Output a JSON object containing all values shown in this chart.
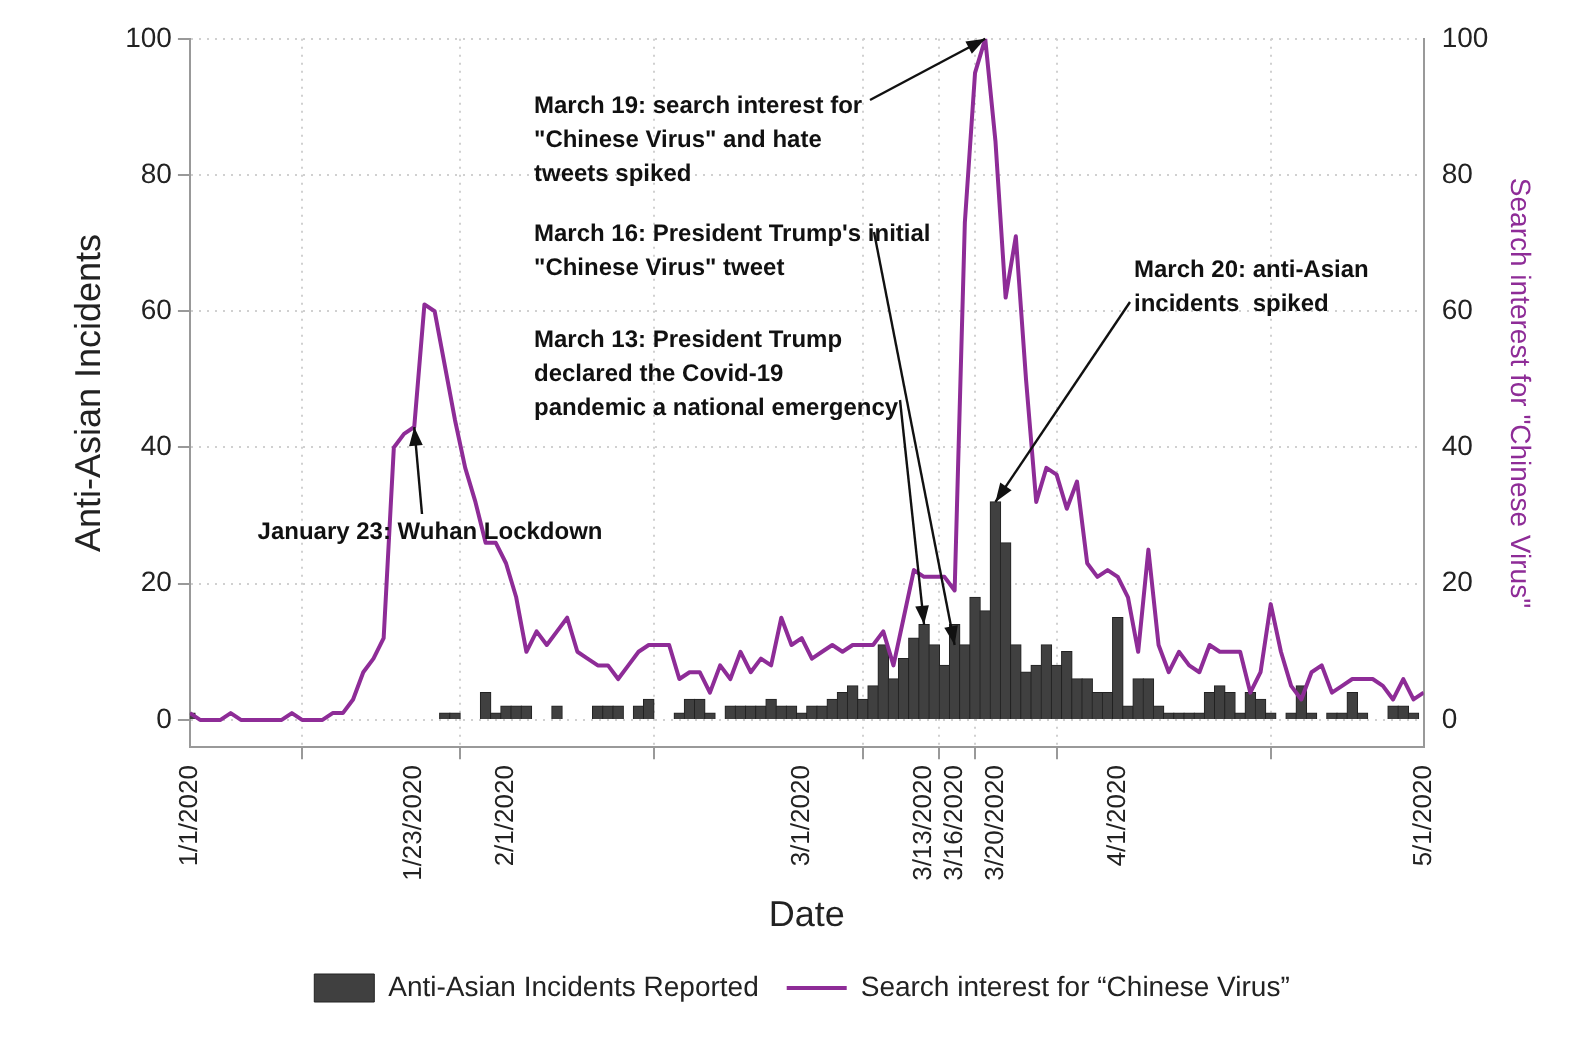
{
  "chart_data": {
    "type": "bar",
    "xlabel": "Date",
    "ylabel": "Anti-Asian Incidents",
    "y2label": "Search interest for \"Chinese Virus\"",
    "x": [
      "2020-01-01",
      "2020-01-02",
      "2020-01-03",
      "2020-01-04",
      "2020-01-05",
      "2020-01-06",
      "2020-01-07",
      "2020-01-08",
      "2020-01-09",
      "2020-01-10",
      "2020-01-11",
      "2020-01-12",
      "2020-01-13",
      "2020-01-14",
      "2020-01-15",
      "2020-01-16",
      "2020-01-17",
      "2020-01-18",
      "2020-01-19",
      "2020-01-20",
      "2020-01-21",
      "2020-01-22",
      "2020-01-23",
      "2020-01-24",
      "2020-01-25",
      "2020-01-26",
      "2020-01-27",
      "2020-01-28",
      "2020-01-29",
      "2020-01-30",
      "2020-01-31",
      "2020-02-01",
      "2020-02-02",
      "2020-02-03",
      "2020-02-04",
      "2020-02-05",
      "2020-02-06",
      "2020-02-07",
      "2020-02-08",
      "2020-02-09",
      "2020-02-10",
      "2020-02-11",
      "2020-02-12",
      "2020-02-13",
      "2020-02-14",
      "2020-02-15",
      "2020-02-16",
      "2020-02-17",
      "2020-02-18",
      "2020-02-19",
      "2020-02-20",
      "2020-02-21",
      "2020-02-22",
      "2020-02-23",
      "2020-02-24",
      "2020-02-25",
      "2020-02-26",
      "2020-02-27",
      "2020-02-28",
      "2020-02-29",
      "2020-03-01",
      "2020-03-02",
      "2020-03-03",
      "2020-03-04",
      "2020-03-05",
      "2020-03-06",
      "2020-03-07",
      "2020-03-08",
      "2020-03-09",
      "2020-03-10",
      "2020-03-11",
      "2020-03-12",
      "2020-03-13",
      "2020-03-14",
      "2020-03-15",
      "2020-03-16",
      "2020-03-17",
      "2020-03-18",
      "2020-03-19",
      "2020-03-20",
      "2020-03-21",
      "2020-03-22",
      "2020-03-23",
      "2020-03-24",
      "2020-03-25",
      "2020-03-26",
      "2020-03-27",
      "2020-03-28",
      "2020-03-29",
      "2020-03-30",
      "2020-03-31",
      "2020-04-01",
      "2020-04-02",
      "2020-04-03",
      "2020-04-04",
      "2020-04-05",
      "2020-04-06",
      "2020-04-07",
      "2020-04-08",
      "2020-04-09",
      "2020-04-10",
      "2020-04-11",
      "2020-04-12",
      "2020-04-13",
      "2020-04-14",
      "2020-04-15",
      "2020-04-16",
      "2020-04-17",
      "2020-04-18",
      "2020-04-19",
      "2020-04-20",
      "2020-04-21",
      "2020-04-22",
      "2020-04-23",
      "2020-04-24",
      "2020-04-25",
      "2020-04-26",
      "2020-04-27",
      "2020-04-28",
      "2020-04-29",
      "2020-04-30",
      "2020-05-01"
    ],
    "series": [
      {
        "name": "Anti-Asian Incidents Reported",
        "color": "#404040",
        "values": [
          1,
          0,
          0,
          0,
          0,
          0,
          0,
          0,
          0,
          0,
          0,
          0,
          0,
          0,
          0,
          0,
          0,
          0,
          0,
          0,
          0,
          0,
          0,
          0,
          0,
          1,
          1,
          0,
          0,
          4,
          1,
          2,
          2,
          2,
          0,
          0,
          2,
          0,
          0,
          0,
          2,
          2,
          2,
          0,
          2,
          3,
          0,
          0,
          1,
          3,
          3,
          1,
          0,
          2,
          2,
          2,
          2,
          3,
          2,
          2,
          1,
          2,
          2,
          3,
          4,
          5,
          3,
          5,
          11,
          6,
          9,
          12,
          14,
          11,
          8,
          14,
          11,
          18,
          16,
          32,
          26,
          11,
          7,
          8,
          11,
          8,
          10,
          6,
          6,
          4,
          4,
          15,
          2,
          6,
          6,
          2,
          1,
          1,
          1,
          1,
          4,
          5,
          4,
          1,
          4,
          3,
          1,
          0,
          1,
          5,
          1,
          0,
          1,
          1,
          4,
          1,
          0,
          0,
          2,
          2,
          1,
          0
        ]
      },
      {
        "name": "Search interest for “Chinese Virus”",
        "type": "line",
        "axis": "y2",
        "color": "#8e2c97",
        "values": [
          1,
          0,
          0,
          0,
          1,
          0,
          0,
          0,
          0,
          0,
          1,
          0,
          0,
          0,
          1,
          1,
          3,
          7,
          9,
          12,
          40,
          42,
          43,
          61,
          60,
          52,
          44,
          37,
          32,
          26,
          26,
          23,
          18,
          10,
          13,
          11,
          13,
          15,
          10,
          9,
          8,
          8,
          6,
          8,
          10,
          11,
          11,
          11,
          6,
          7,
          7,
          4,
          8,
          6,
          10,
          7,
          9,
          8,
          15,
          11,
          12,
          9,
          10,
          11,
          10,
          11,
          11,
          11,
          13,
          8,
          15,
          22,
          21,
          21,
          21,
          19,
          73,
          95,
          100,
          85,
          62,
          71,
          50,
          32,
          37,
          36,
          31,
          35,
          23,
          21,
          22,
          21,
          18,
          10,
          25,
          11,
          7,
          10,
          8,
          7,
          11,
          10,
          10,
          10,
          4,
          7,
          17,
          10,
          5,
          3,
          7,
          8,
          4,
          5,
          6,
          6,
          6,
          5,
          3,
          6,
          3,
          4
        ]
      }
    ],
    "xlim": [
      "2020-01-01",
      "2020-05-01"
    ],
    "xticks": [
      {
        "value": "2020-01-01",
        "label": "1/1/2020"
      },
      {
        "value": "2020-01-23",
        "label": "1/23/2020"
      },
      {
        "value": "2020-02-01",
        "label": "2/1/2020"
      },
      {
        "value": "2020-03-01",
        "label": "3/1/2020"
      },
      {
        "value": "2020-03-13",
        "label": "3/13/2020"
      },
      {
        "value": "2020-03-16",
        "label": "3/16/2020"
      },
      {
        "value": "2020-03-20",
        "label": "3/20/2020"
      },
      {
        "value": "2020-04-01",
        "label": "4/1/2020"
      },
      {
        "value": "2020-05-01",
        "label": "5/1/2020"
      }
    ],
    "ylim": [
      -4,
      100
    ],
    "yticks": [
      0,
      20,
      40,
      60,
      80,
      100
    ],
    "y2lim": [
      -4,
      100
    ],
    "y2ticks": [
      0,
      20,
      40,
      60,
      80,
      100
    ],
    "grid": true,
    "line_style": "solid",
    "marker": "none",
    "legend": "bottom",
    "annotations": [
      {
        "text": "January 23: Wuhan Lockdown",
        "x": "2020-01-23",
        "y": 43
      },
      {
        "text": "March 13: President Trump\ndeclared the Covid-19\npandemic a national emergency",
        "x": "2020-03-13",
        "y": 14
      },
      {
        "text": "March 16: President Trump's initial\n\"Chinese Virus\" tweet",
        "x": "2020-03-16",
        "y": 11
      },
      {
        "text": "March 19: search interest for\n\"Chinese Virus\" and hate\ntweets spiked",
        "x": "2020-03-19",
        "y": 100
      },
      {
        "text": "March 20: anti-Asian\nincidents  spiked",
        "x": "2020-03-20",
        "y": 32
      }
    ]
  }
}
